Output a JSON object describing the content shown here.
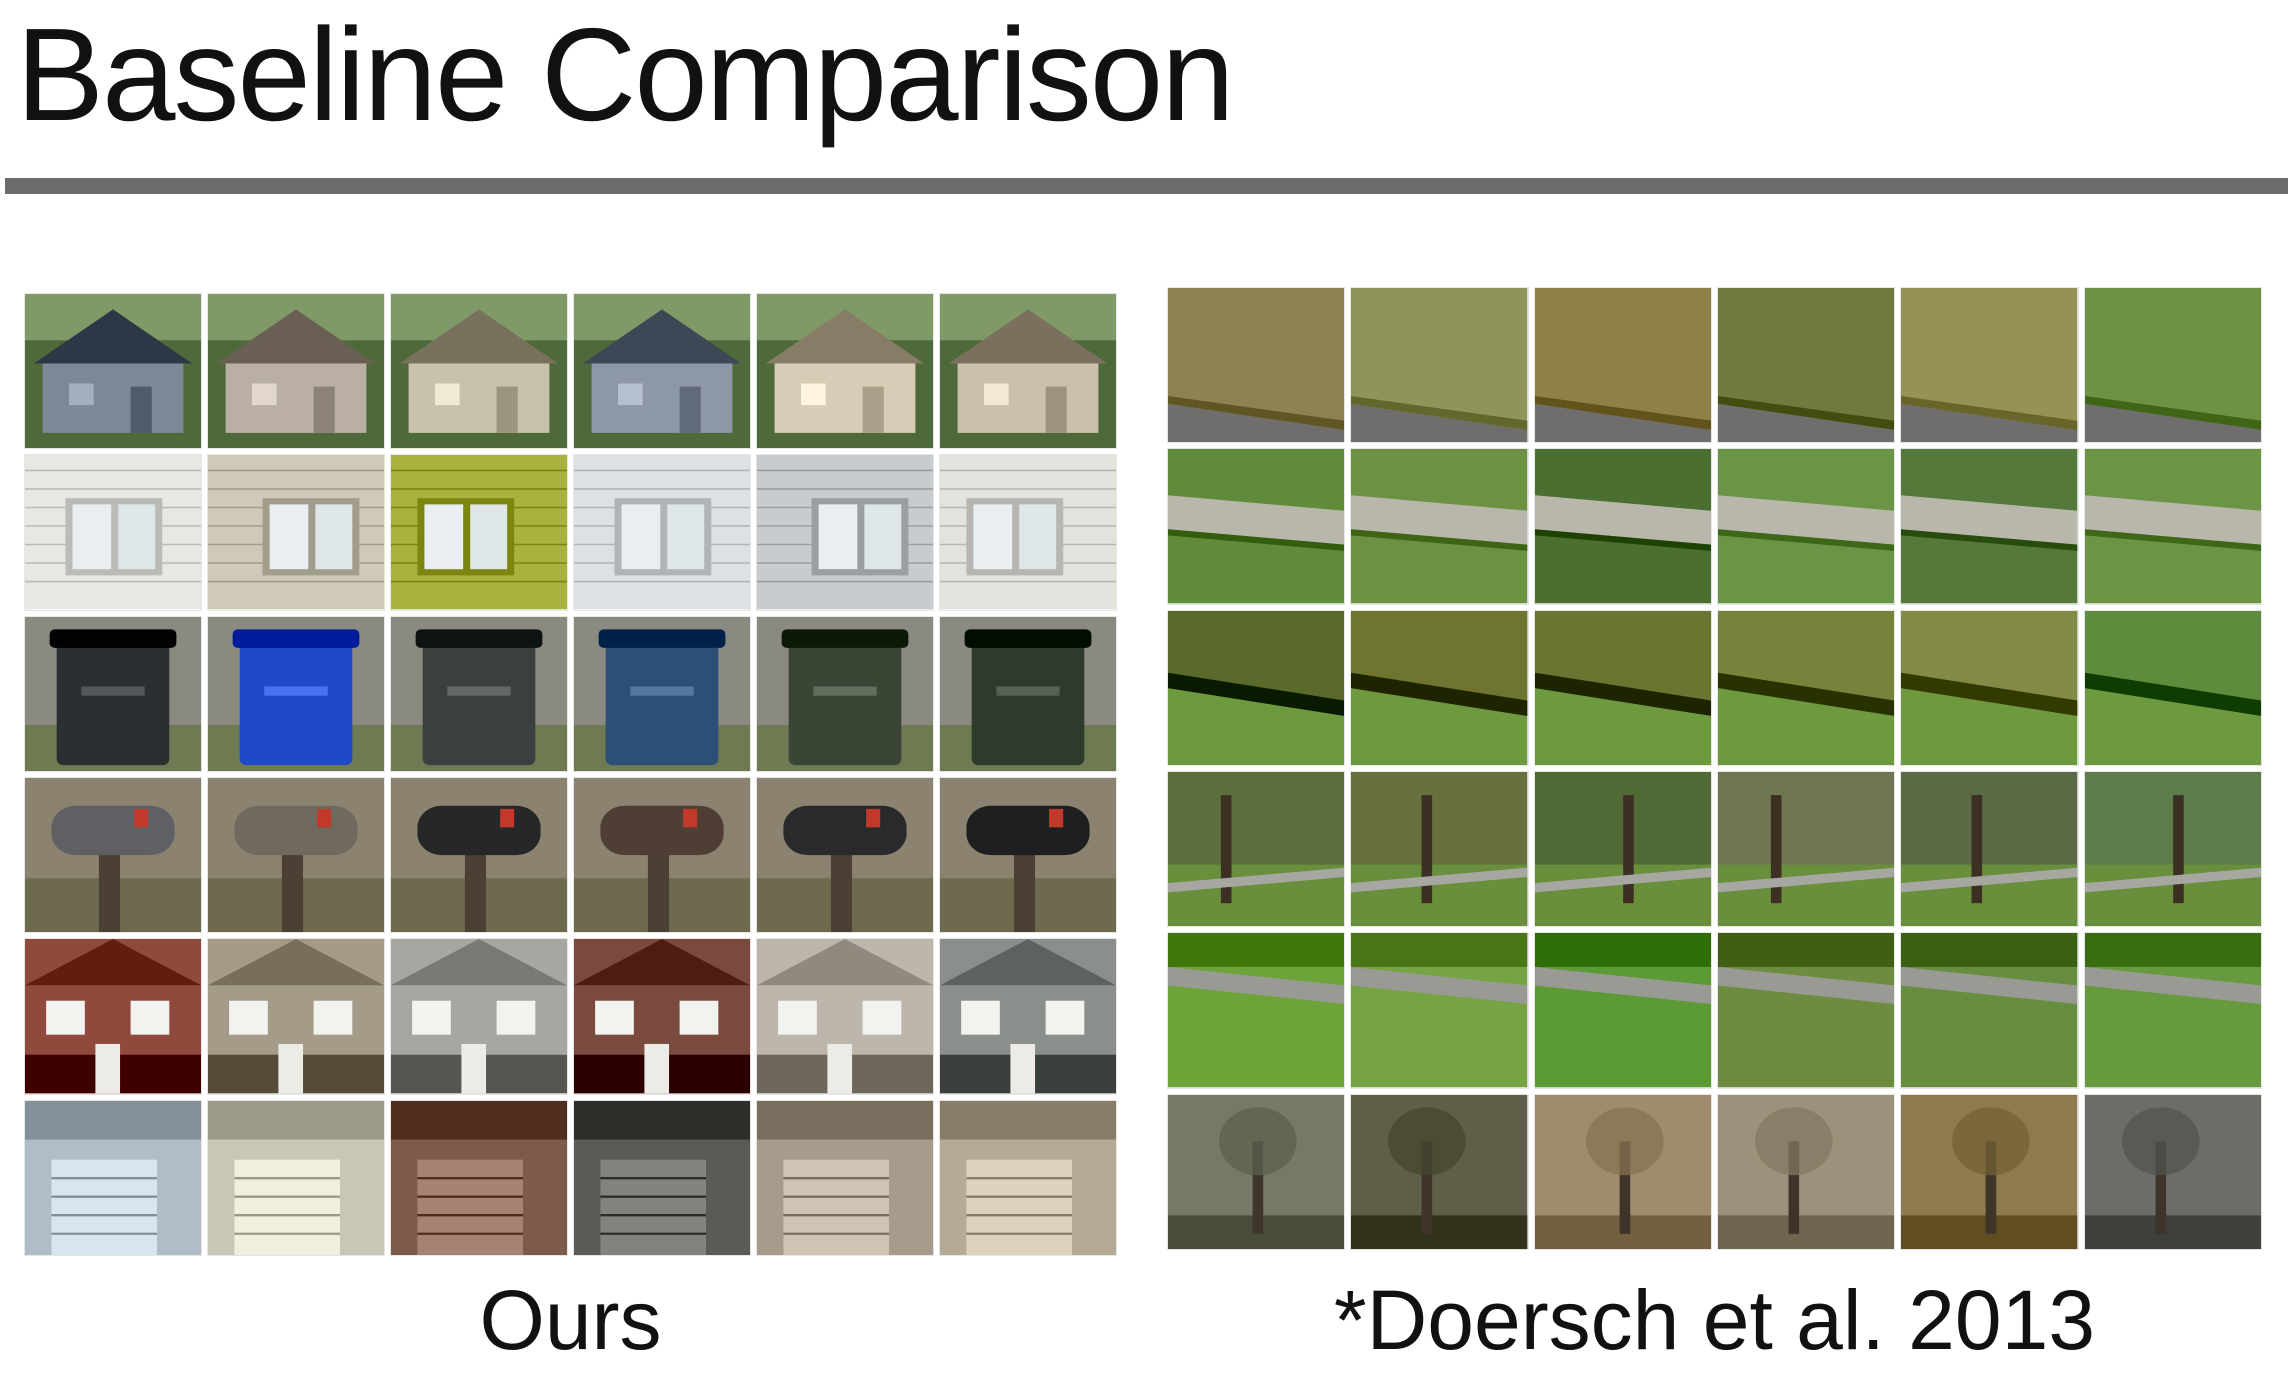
{
  "slide": {
    "title": "Baseline Comparison"
  },
  "panels": {
    "ours": {
      "caption": "Ours",
      "rows": [
        {
          "theme": "house-facade",
          "colors": [
            "#7d8896",
            "#b9b0a3",
            "#c8c2ad",
            "#8e97a6",
            "#d7ccb5",
            "#cdbfae"
          ]
        },
        {
          "theme": "window",
          "colors": [
            "#e7e7e3",
            "#cfcab8",
            "#a9b23c",
            "#dde1e6",
            "#c9ccce",
            "#e3e2dc"
          ]
        },
        {
          "theme": "trash-bin",
          "colors": [
            "#2a2f31",
            "#1f49c8",
            "#3a403f",
            "#2c4f77",
            "#3b4536",
            "#2e3a2c"
          ]
        },
        {
          "theme": "mailbox",
          "colors": [
            "#5e6063",
            "#6f6a5d",
            "#262728",
            "#4e3e34",
            "#2a2a2c",
            "#1e1f20"
          ]
        },
        {
          "theme": "brick-house",
          "colors": [
            "#8f4a3d",
            "#a49b89",
            "#a8a6a0",
            "#7b4a3e",
            "#bcb6ad",
            "#8b8f8c"
          ]
        },
        {
          "theme": "garage-door",
          "colors": [
            "#b0bdc9",
            "#c9c6b6",
            "#7e5a4b",
            "#5b5a57",
            "#a79c8c",
            "#b7aa95"
          ]
        }
      ]
    },
    "baseline": {
      "caption": "*Doersch et al. 2013",
      "rows": [
        {
          "theme": "grass-road-edge",
          "colors": [
            "#8c8350",
            "#8f9458",
            "#8e8049",
            "#6f7a3c",
            "#949256",
            "#6e9244"
          ]
        },
        {
          "theme": "grass-sidewalk",
          "colors": [
            "#5f8b3a",
            "#6c9143",
            "#4a6f31",
            "#6a9446",
            "#54793a",
            "#6c9445"
          ]
        },
        {
          "theme": "hedge-grass",
          "colors": [
            "#5a6a2a",
            "#6f7430",
            "#6c7431",
            "#78823a",
            "#828a45",
            "#5f8c3c"
          ]
        },
        {
          "theme": "tree-lawn",
          "colors": [
            "#5b6e3b",
            "#66713f",
            "#4f6a35",
            "#707552",
            "#5a6a45",
            "#5d7c49"
          ]
        },
        {
          "theme": "lawn-road",
          "colors": [
            "#6da43a",
            "#76a343",
            "#5c9a36",
            "#6d8c3f",
            "#678e3f",
            "#679a3f"
          ]
        },
        {
          "theme": "bare-trees",
          "colors": [
            "#747a66",
            "#5f5e48",
            "#a08c6a",
            "#9c917a",
            "#8f7a4f",
            "#6a6d68"
          ]
        }
      ]
    }
  }
}
